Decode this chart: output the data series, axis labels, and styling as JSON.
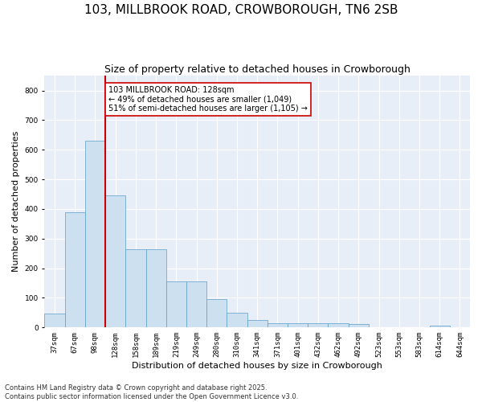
{
  "title1": "103, MILLBROOK ROAD, CROWBOROUGH, TN6 2SB",
  "title2": "Size of property relative to detached houses in Crowborough",
  "xlabel": "Distribution of detached houses by size in Crowborough",
  "ylabel": "Number of detached properties",
  "categories": [
    "37sqm",
    "67sqm",
    "98sqm",
    "128sqm",
    "158sqm",
    "189sqm",
    "219sqm",
    "249sqm",
    "280sqm",
    "310sqm",
    "341sqm",
    "371sqm",
    "401sqm",
    "432sqm",
    "462sqm",
    "492sqm",
    "523sqm",
    "553sqm",
    "583sqm",
    "614sqm",
    "644sqm"
  ],
  "values": [
    47,
    390,
    630,
    445,
    265,
    265,
    155,
    155,
    97,
    50,
    25,
    15,
    15,
    15,
    15,
    12,
    0,
    0,
    0,
    5,
    0
  ],
  "bar_color": "#cce0f0",
  "bar_edge_color": "#5a9ec9",
  "vline_color": "#cc0000",
  "annotation_box_text": "103 MILLBROOK ROAD: 128sqm\n← 49% of detached houses are smaller (1,049)\n51% of semi-detached houses are larger (1,105) →",
  "annotation_box_color": "#cc0000",
  "ylim": [
    0,
    850
  ],
  "yticks": [
    0,
    100,
    200,
    300,
    400,
    500,
    600,
    700,
    800
  ],
  "background_color": "#e8eef8",
  "footer_text": "Contains HM Land Registry data © Crown copyright and database right 2025.\nContains public sector information licensed under the Open Government Licence v3.0.",
  "title_fontsize": 11,
  "subtitle_fontsize": 9,
  "tick_fontsize": 6.5,
  "label_fontsize": 8,
  "footer_fontsize": 6,
  "annotation_fontsize": 7
}
